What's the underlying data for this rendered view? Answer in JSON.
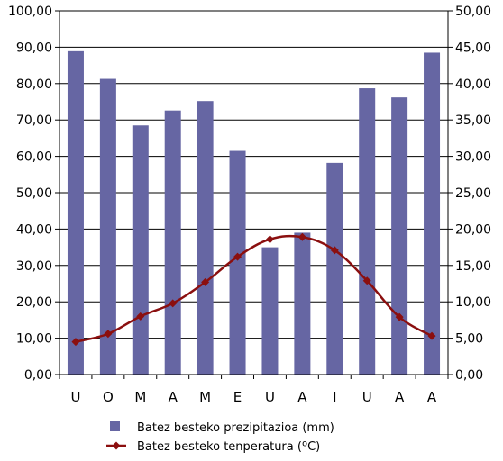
{
  "chart_data": {
    "type": "bar",
    "categories": [
      "U",
      "O",
      "M",
      "A",
      "M",
      "E",
      "U",
      "A",
      "I",
      "U",
      "A",
      "A"
    ],
    "series": [
      {
        "name": "Batez besteko prezipitazioa (mm)",
        "type": "bar",
        "axis": "left",
        "color": "#6666a3",
        "values": [
          88.9,
          81.3,
          68.5,
          72.6,
          75.2,
          61.5,
          35.0,
          39.0,
          58.2,
          78.7,
          76.2,
          88.5
        ]
      },
      {
        "name": "Batez besteko tenperatura (ºC)",
        "type": "line",
        "axis": "right",
        "color": "#8b0f0f",
        "values": [
          4.5,
          5.6,
          8.0,
          9.8,
          12.7,
          16.2,
          18.6,
          18.9,
          17.1,
          12.9,
          7.9,
          5.3
        ]
      }
    ],
    "left_axis": {
      "ylim": [
        0,
        100
      ],
      "ticks": [
        "0,00",
        "10,00",
        "20,00",
        "30,00",
        "40,00",
        "50,00",
        "60,00",
        "70,00",
        "80,00",
        "90,00",
        "100,00"
      ]
    },
    "right_axis": {
      "ylim": [
        0,
        50
      ],
      "ticks": [
        "0,00",
        "5,00",
        "10,00",
        "15,00",
        "20,00",
        "25,00",
        "30,00",
        "35,00",
        "40,00",
        "45,00",
        "50,00"
      ]
    },
    "grid": true,
    "legend": "bottom"
  }
}
